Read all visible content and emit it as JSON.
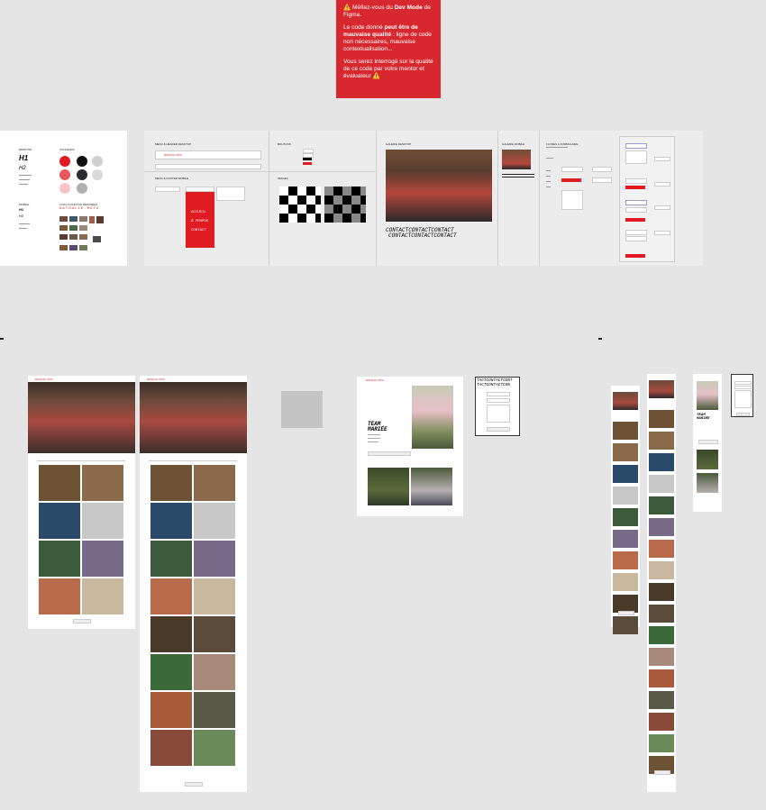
{
  "warning": {
    "line1_prefix": "⚠️ Méfiez-vous du ",
    "line1_bold": "Dev Mode",
    "line1_suffix": " de Figma.",
    "line2_prefix": "Le code donné ",
    "line2_bold": "peut être de mauvaise qualité",
    "line2_suffix": " : ligne de code non nécessaires, mauvaise contextualisation...",
    "line3": "Vous serez interrogé sur la qualité de ce code par votre mentor et évaluateur ⚠️"
  },
  "style_guide": {
    "desktop_label": "DESKTOP",
    "h1": "H1",
    "h2": "H2",
    "colors_label": "COULEURS",
    "mobile_label": "MOBILE",
    "logo_label": "LOGO & PHOTOS REPOSÉES",
    "brand": "NATHALIE MOTO",
    "colors": [
      "#e11b22",
      "#111111",
      "#cfcfcf",
      "#e8575c",
      "#2b2b33",
      "#dadada",
      "#f8c6c8",
      "#b0b0b0"
    ]
  },
  "components": {
    "menu_desktop_label": "MENU & HEADER DESKTOP",
    "buttons_label": "BOUTONS",
    "menu_mobile_label": "MENU & FOOTER MOBILE",
    "images_label": "IMAGES",
    "gallery_label": "GALERIE DESKTOP",
    "gallery_mobile_label": "GALERIE MOBILE",
    "filters_label": "FILTRES & FORMULAIRE",
    "mobile_menu_items": [
      "ACCUEIL",
      "À PROPOS",
      "CONTACT"
    ],
    "contact_marquee": [
      "CONTACTCONTACTCONTACT",
      "CONTACTCONTACTCONTACT"
    ]
  },
  "pages": {
    "about_title_1": "TEAM",
    "about_title_2": "MARIÉE",
    "contact_marquee": [
      "TACTCONTACTCONT",
      "TACTCONTACTCON"
    ]
  }
}
